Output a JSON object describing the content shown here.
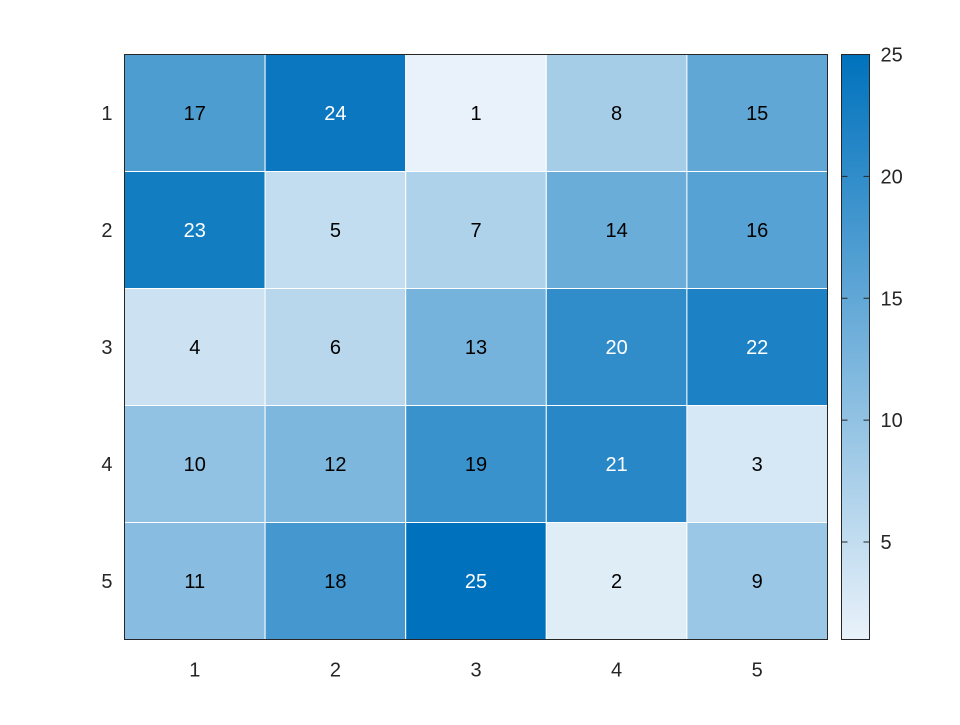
{
  "chart_data": {
    "type": "heatmap",
    "x_categories": [
      "1",
      "2",
      "3",
      "4",
      "5"
    ],
    "y_categories": [
      "1",
      "2",
      "3",
      "4",
      "5"
    ],
    "values": [
      [
        17,
        24,
        1,
        8,
        15
      ],
      [
        23,
        5,
        7,
        14,
        16
      ],
      [
        4,
        6,
        13,
        20,
        22
      ],
      [
        10,
        12,
        19,
        21,
        3
      ],
      [
        11,
        18,
        25,
        2,
        9
      ]
    ],
    "title": "",
    "xlabel": "",
    "ylabel": "",
    "color_scale": {
      "min": 1,
      "max": 25,
      "low_color": "#e9f2fa",
      "high_color": "#0072bd",
      "ticks": [
        5,
        10,
        15,
        20,
        25
      ]
    },
    "cell_labels": true,
    "light_text_threshold": 20,
    "grid": false,
    "colorbar": "right"
  }
}
